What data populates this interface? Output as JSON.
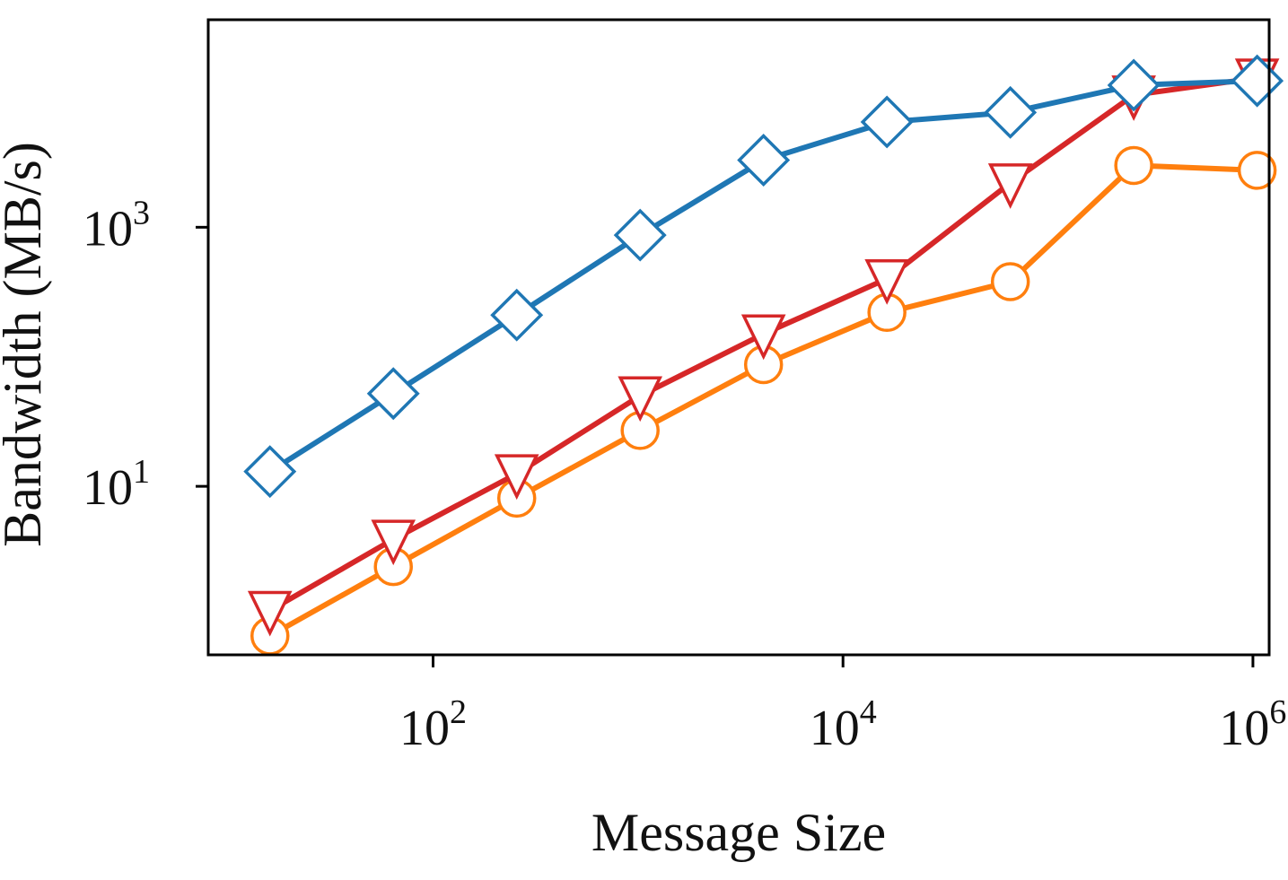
{
  "chart_data": {
    "type": "line",
    "title": "",
    "xlabel": "Message Size",
    "ylabel": "Bandwidth (MB/s)",
    "x_scale": "log",
    "y_scale": "log",
    "xlim": [
      8,
      1200000
    ],
    "ylim": [
      0.5,
      40000
    ],
    "x_ticks": [
      {
        "value": 100,
        "base": "10",
        "exp": "2"
      },
      {
        "value": 10000,
        "base": "10",
        "exp": "4"
      },
      {
        "value": 1000000,
        "base": "10",
        "exp": "6"
      }
    ],
    "y_ticks": [
      {
        "value": 10,
        "base": "10",
        "exp": "1"
      },
      {
        "value": 1000,
        "base": "10",
        "exp": "3"
      }
    ],
    "grid": false,
    "legend": "none",
    "x": [
      16,
      64,
      256,
      1024,
      4096,
      16384,
      65536,
      262144,
      1048576
    ],
    "series": [
      {
        "values": [
          13,
          52,
          210,
          870,
          3300,
          6500,
          7700,
          12500,
          13500
        ],
        "color": "#1f77b4",
        "marker": "diamond"
      },
      {
        "values": [
          1.1,
          3.9,
          12.5,
          50,
          150,
          400,
          2200,
          10500,
          14200
        ],
        "color": "#d62728",
        "marker": "triangle-down"
      },
      {
        "values": [
          0.7,
          2.4,
          8.1,
          27,
          87,
          220,
          380,
          3000,
          2750
        ],
        "color": "#ff7f0e",
        "marker": "circle"
      }
    ]
  }
}
